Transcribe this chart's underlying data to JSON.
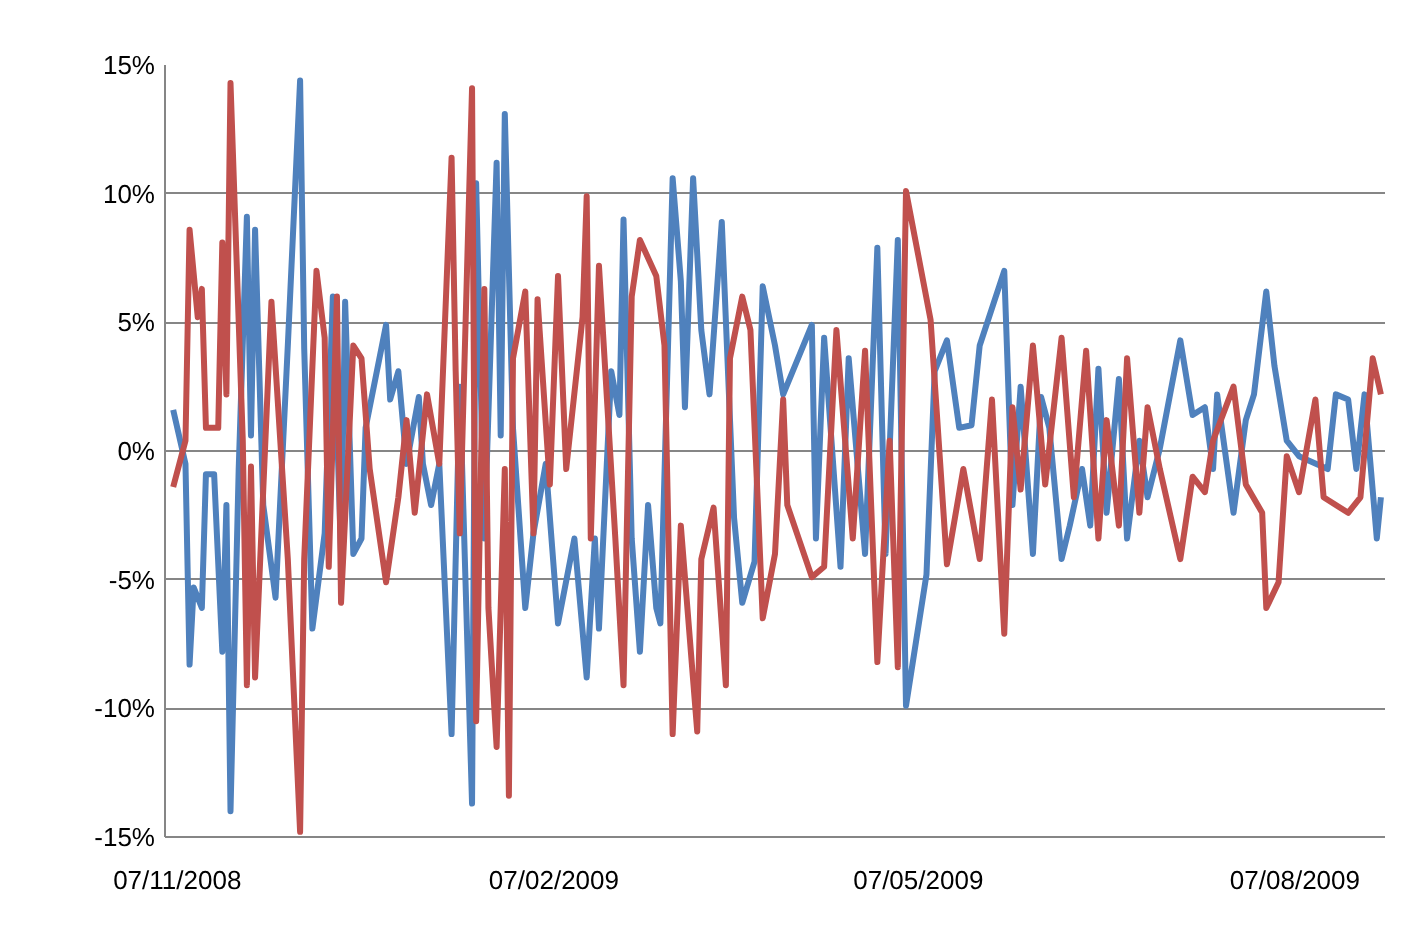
{
  "chart_data": {
    "type": "line",
    "xlim": [
      "2008-11-04",
      "2009-08-29"
    ],
    "xticks": [
      {
        "value": "2008-11-07",
        "label": "07/11/2008"
      },
      {
        "value": "2009-02-07",
        "label": "07/02/2009"
      },
      {
        "value": "2009-05-07",
        "label": "07/05/2009"
      },
      {
        "value": "2009-08-07",
        "label": "07/08/2009"
      }
    ],
    "ylim": [
      -15,
      15
    ],
    "yticks": [
      {
        "value": -15,
        "label": "-15%"
      },
      {
        "value": -10,
        "label": "-10%"
      },
      {
        "value": -5,
        "label": "-5%"
      },
      {
        "value": 0,
        "label": "0%"
      },
      {
        "value": 5,
        "label": "5%"
      },
      {
        "value": 10,
        "label": "10%"
      },
      {
        "value": 15,
        "label": "15%"
      }
    ],
    "grid": "y",
    "marker": "none",
    "line_style": "solid",
    "series": [
      {
        "color": "#4f81bd",
        "x": [
          "2008-11-06",
          "2008-11-09",
          "2008-11-10",
          "2008-11-11",
          "2008-11-13",
          "2008-11-14",
          "2008-11-16",
          "2008-11-18",
          "2008-11-19",
          "2008-11-20",
          "2008-11-22",
          "2008-11-24",
          "2008-11-25",
          "2008-11-26",
          "2008-11-28",
          "2008-12-01",
          "2008-12-04",
          "2008-12-07",
          "2008-12-08",
          "2008-12-10",
          "2008-12-13",
          "2008-12-15",
          "2008-12-17",
          "2008-12-18",
          "2008-12-20",
          "2008-12-22",
          "2008-12-23",
          "2008-12-28",
          "2008-12-29",
          "2008-12-31",
          "2009-01-02",
          "2009-01-05",
          "2009-01-06",
          "2009-01-08",
          "2009-01-10",
          "2009-01-13",
          "2009-01-15",
          "2009-01-18",
          "2009-01-19",
          "2009-01-21",
          "2009-01-24",
          "2009-01-25",
          "2009-01-26",
          "2009-01-28",
          "2009-01-31",
          "2009-02-02",
          "2009-02-05",
          "2009-02-08",
          "2009-02-12",
          "2009-02-15",
          "2009-02-17",
          "2009-02-18",
          "2009-02-21",
          "2009-02-23",
          "2009-02-24",
          "2009-02-26",
          "2009-02-28",
          "2009-03-02",
          "2009-03-04",
          "2009-03-05",
          "2009-03-08",
          "2009-03-10",
          "2009-03-11",
          "2009-03-13",
          "2009-03-15",
          "2009-03-17",
          "2009-03-20",
          "2009-03-23",
          "2009-03-25",
          "2009-03-28",
          "2009-03-30",
          "2009-04-02",
          "2009-04-04",
          "2009-04-11",
          "2009-04-12",
          "2009-04-14",
          "2009-04-18",
          "2009-04-20",
          "2009-04-24",
          "2009-04-27",
          "2009-04-29",
          "2009-05-02",
          "2009-05-04",
          "2009-05-09",
          "2009-05-11",
          "2009-05-14",
          "2009-05-17",
          "2009-05-20",
          "2009-05-22",
          "2009-05-28",
          "2009-05-30",
          "2009-06-01",
          "2009-06-04",
          "2009-06-06",
          "2009-06-08",
          "2009-06-11",
          "2009-06-13",
          "2009-06-16",
          "2009-06-18",
          "2009-06-20",
          "2009-06-22",
          "2009-06-25",
          "2009-06-27",
          "2009-06-30",
          "2009-07-02",
          "2009-07-05",
          "2009-07-10",
          "2009-07-13",
          "2009-07-16",
          "2009-07-18",
          "2009-07-19",
          "2009-07-23",
          "2009-07-26",
          "2009-07-28",
          "2009-07-31",
          "2009-08-02",
          "2009-08-05",
          "2009-08-08",
          "2009-08-15",
          "2009-08-17",
          "2009-08-20",
          "2009-08-22",
          "2009-08-24",
          "2009-08-27",
          "2009-08-28"
        ],
        "values": [
          1.6,
          -0.5,
          -8.3,
          -5.3,
          -6.1,
          -0.9,
          -0.9,
          -7.8,
          -2.1,
          -14,
          -0.7,
          9.1,
          0.6,
          8.6,
          -2.1,
          -5.7,
          4.1,
          14.4,
          4,
          -6.9,
          -3.2,
          6,
          -4,
          5.8,
          -4,
          -3.4,
          0.9,
          4.9,
          2,
          3.1,
          -0.5,
          2.1,
          -0.5,
          -2.1,
          -0.5,
          -11,
          2.5,
          -13.7,
          10.4,
          -3.4,
          11.2,
          0.6,
          13.1,
          0.9,
          -6.1,
          -3.2,
          -0.5,
          -6.7,
          -3.4,
          -8.8,
          -3.4,
          -6.9,
          3.1,
          1.4,
          9,
          -3.4,
          -7.8,
          -2.1,
          -6.1,
          -6.7,
          10.6,
          6.6,
          1.7,
          10.6,
          4.7,
          2.2,
          8.9,
          -2.6,
          -5.9,
          -4.3,
          6.4,
          4.1,
          2.2,
          4.9,
          -3.4,
          4.4,
          -4.5,
          3.6,
          -4,
          7.9,
          -4,
          8.2,
          -9.9,
          -4.8,
          3.1,
          4.3,
          0.9,
          1,
          4.1,
          7,
          -2.1,
          2.5,
          -4,
          2.1,
          0.9,
          -4.2,
          -2.9,
          -0.7,
          -2.9,
          3.2,
          -2.4,
          2.8,
          -3.4,
          0.4,
          -1.8,
          0.1,
          4.3,
          1.4,
          1.7,
          -0.7,
          2.2,
          -2.4,
          1.2,
          2.2,
          6.2,
          3.3,
          0.4,
          -0.2,
          -0.7,
          2.2,
          2,
          -0.7,
          2.2,
          -3.4,
          -1.8
        ]
      },
      {
        "color": "#c0504d",
        "x": [
          "2008-11-06",
          "2008-11-09",
          "2008-11-10",
          "2008-11-12",
          "2008-11-13",
          "2008-11-14",
          "2008-11-17",
          "2008-11-18",
          "2008-11-19",
          "2008-11-20",
          "2008-11-23",
          "2008-11-24",
          "2008-11-25",
          "2008-11-26",
          "2008-11-30",
          "2008-12-04",
          "2008-12-07",
          "2008-12-08",
          "2008-12-11",
          "2008-12-13",
          "2008-12-14",
          "2008-12-16",
          "2008-12-17",
          "2008-12-20",
          "2008-12-22",
          "2008-12-24",
          "2008-12-28",
          "2008-12-31",
          "2009-01-02",
          "2009-01-04",
          "2009-01-07",
          "2009-01-10",
          "2009-01-13",
          "2009-01-14",
          "2009-01-15",
          "2009-01-18",
          "2009-01-19",
          "2009-01-21",
          "2009-01-22",
          "2009-01-24",
          "2009-01-26",
          "2009-01-27",
          "2009-01-28",
          "2009-01-31",
          "2009-02-02",
          "2009-02-03",
          "2009-02-06",
          "2009-02-08",
          "2009-02-10",
          "2009-02-14",
          "2009-02-15",
          "2009-02-16",
          "2009-02-18",
          "2009-02-22",
          "2009-02-24",
          "2009-02-26",
          "2009-02-28",
          "2009-03-04",
          "2009-03-06",
          "2009-03-08",
          "2009-03-10",
          "2009-03-14",
          "2009-03-15",
          "2009-03-18",
          "2009-03-21",
          "2009-03-22",
          "2009-03-25",
          "2009-03-27",
          "2009-03-30",
          "2009-04-02",
          "2009-04-04",
          "2009-04-05",
          "2009-04-11",
          "2009-04-14",
          "2009-04-17",
          "2009-04-21",
          "2009-04-24",
          "2009-04-27",
          "2009-04-30",
          "2009-05-02",
          "2009-05-04",
          "2009-05-10",
          "2009-05-14",
          "2009-05-18",
          "2009-05-22",
          "2009-05-25",
          "2009-05-28",
          "2009-05-30",
          "2009-06-01",
          "2009-06-04",
          "2009-06-07",
          "2009-06-11",
          "2009-06-14",
          "2009-06-17",
          "2009-06-20",
          "2009-06-22",
          "2009-06-25",
          "2009-06-27",
          "2009-06-30",
          "2009-07-02",
          "2009-07-05",
          "2009-07-10",
          "2009-07-13",
          "2009-07-16",
          "2009-07-18",
          "2009-07-23",
          "2009-07-26",
          "2009-07-30",
          "2009-07-31",
          "2009-08-03",
          "2009-08-05",
          "2009-08-08",
          "2009-08-12",
          "2009-08-14",
          "2009-08-20",
          "2009-08-23",
          "2009-08-26",
          "2009-08-28"
        ],
        "values": [
          -1.4,
          0.4,
          8.6,
          5.2,
          6.3,
          0.9,
          0.9,
          8.1,
          2.2,
          14.3,
          0.4,
          -9.1,
          -0.6,
          -8.8,
          5.8,
          -4.2,
          -14.8,
          -4.2,
          7,
          4.4,
          -4.5,
          6,
          -5.9,
          4.1,
          3.6,
          -0.7,
          -5.1,
          -1.8,
          1.2,
          -2.4,
          2.2,
          -0.5,
          11.4,
          3.1,
          -3.2,
          14.1,
          -10.5,
          6.3,
          -6.1,
          -11.5,
          -0.7,
          -13.4,
          3.6,
          6.2,
          -3.2,
          5.9,
          -1.3,
          6.8,
          -0.7,
          5.2,
          9.9,
          -3.4,
          7.2,
          -3.4,
          -9.1,
          6,
          8.2,
          6.8,
          4.1,
          -11,
          -2.9,
          -10.9,
          -4.2,
          -2.2,
          -9.1,
          3.6,
          6,
          4.7,
          -6.5,
          -4,
          2,
          -2.1,
          -4.9,
          -4.5,
          4.7,
          -3.4,
          3.9,
          -8.2,
          0.4,
          -8.4,
          10.1,
          5.1,
          -4.4,
          -0.7,
          -4.2,
          2,
          -7.1,
          1.7,
          -1.5,
          4.1,
          -1.3,
          4.4,
          -1.8,
          3.9,
          -3.4,
          1.2,
          -2.9,
          3.6,
          -2.4,
          1.7,
          -0.7,
          -4.2,
          -1,
          -1.6,
          0.4,
          2.5,
          -1.3,
          -2.4,
          -6.1,
          -5.1,
          -0.2,
          -1.6,
          2,
          -1.8,
          -2.4,
          -1.8,
          3.6,
          2.2
        ]
      }
    ]
  }
}
